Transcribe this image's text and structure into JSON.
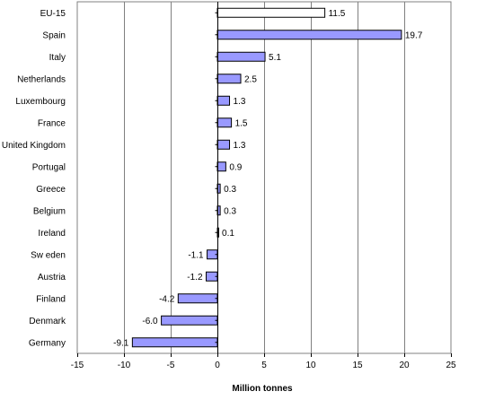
{
  "chart_data": {
    "type": "bar",
    "orientation": "horizontal",
    "categories": [
      "EU-15",
      "Spain",
      "Italy",
      "Netherlands",
      "Luxembourg",
      "France",
      "United Kingdom",
      "Portugal",
      "Greece",
      "Belgium",
      "Ireland",
      "Sw eden",
      "Austria",
      "Finland",
      "Denmark",
      "Germany"
    ],
    "values": [
      11.5,
      19.7,
      5.1,
      2.5,
      1.3,
      1.5,
      1.3,
      0.9,
      0.3,
      0.3,
      0.1,
      -1.1,
      -1.2,
      -4.2,
      -6.0,
      -9.1
    ],
    "value_labels": [
      "11.5",
      "19.7",
      "5.1",
      "2.5",
      "1.3",
      "1.5",
      "1.3",
      "0.9",
      "0.3",
      "0.3",
      "0.1",
      "-1.1",
      "-1.2",
      "-4.2",
      "-6.0",
      "-9.1"
    ],
    "title": "",
    "xlabel": "Million tonnes",
    "ylabel": "",
    "xlim": [
      -15,
      25
    ],
    "xticks": [
      -15,
      -10,
      -5,
      0,
      5,
      10,
      15,
      20,
      25
    ],
    "grid": "vertical",
    "legend": "none",
    "colors": {
      "highlight": "#ffffff",
      "bars": "#9999ff",
      "outline": "#000000",
      "grid": "#808080",
      "frame": "#808080"
    },
    "highlight_category": "EU-15"
  }
}
